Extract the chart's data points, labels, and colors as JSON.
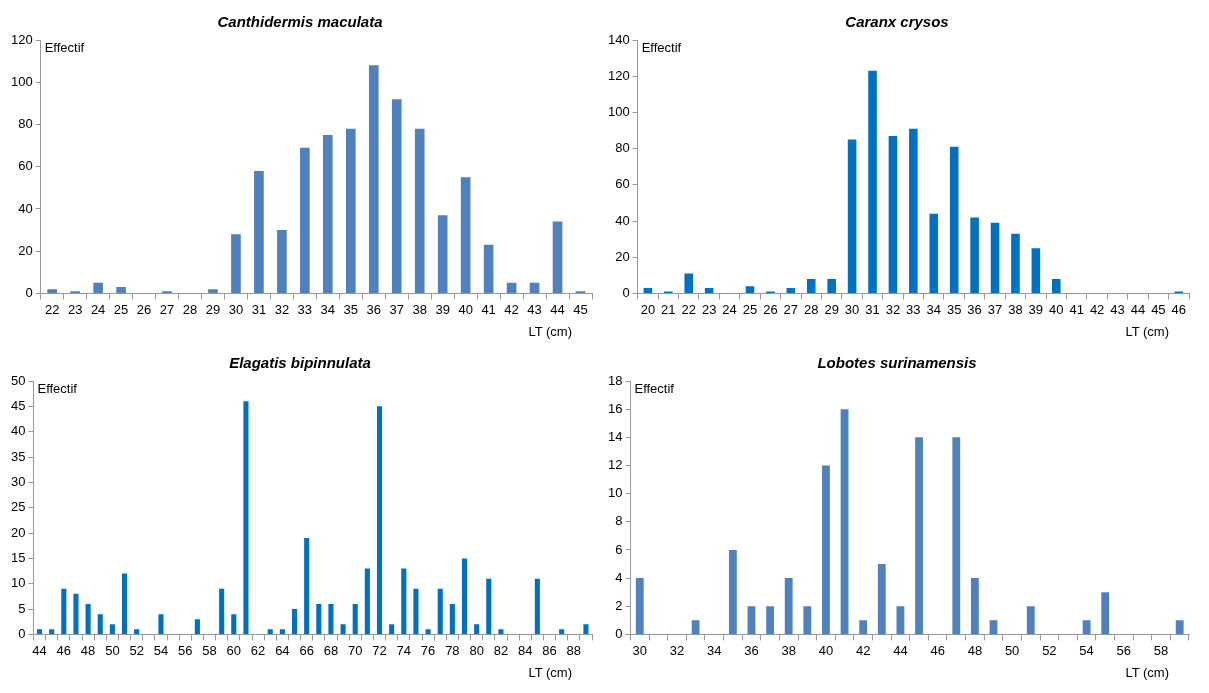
{
  "chart_data": [
    {
      "type": "bar",
      "title": "Canthidermis maculata",
      "xlabel": "LT (cm)",
      "ylabel": "Effectif",
      "grid": false,
      "color": "#4f81bd",
      "categories": [
        "22",
        "23",
        "24",
        "25",
        "26",
        "27",
        "28",
        "29",
        "30",
        "31",
        "32",
        "33",
        "34",
        "35",
        "36",
        "37",
        "38",
        "39",
        "40",
        "41",
        "42",
        "43",
        "44",
        "45"
      ],
      "values": [
        2,
        1,
        5,
        3,
        0,
        1,
        0,
        2,
        28,
        58,
        30,
        69,
        75,
        78,
        108,
        92,
        78,
        37,
        55,
        23,
        5,
        5,
        34,
        1
      ],
      "ylim": [
        0,
        120
      ],
      "yticks": [
        0,
        20,
        40,
        60,
        80,
        100,
        120
      ]
    },
    {
      "type": "bar",
      "title": "Caranx crysos",
      "xlabel": "LT (cm)",
      "ylabel": "Effectif",
      "grid": false,
      "color": "#0070c0",
      "categories": [
        "20",
        "21",
        "22",
        "23",
        "24",
        "25",
        "26",
        "27",
        "28",
        "29",
        "30",
        "31",
        "32",
        "33",
        "34",
        "35",
        "36",
        "37",
        "38",
        "39",
        "40",
        "41",
        "42",
        "43",
        "44",
        "45",
        "46"
      ],
      "values": [
        3,
        1,
        11,
        3,
        0,
        4,
        1,
        3,
        8,
        8,
        85,
        123,
        87,
        91,
        44,
        81,
        42,
        39,
        33,
        25,
        8,
        0,
        0,
        0,
        0,
        0,
        1
      ],
      "ylim": [
        0,
        140
      ],
      "yticks": [
        0,
        20,
        40,
        60,
        80,
        100,
        120,
        140
      ]
    },
    {
      "type": "bar",
      "title": "Elagatis bipinnulata",
      "xlabel": "LT (cm)",
      "ylabel": "Effectif",
      "grid": false,
      "color": "#0070c0",
      "categories": [
        "44",
        null,
        "46",
        null,
        "48",
        null,
        "50",
        null,
        "52",
        null,
        "54",
        null,
        "56",
        null,
        "58",
        null,
        "60",
        null,
        "62",
        null,
        "64",
        null,
        "66",
        null,
        "68",
        null,
        "70",
        null,
        "72",
        null,
        "74",
        null,
        "76",
        null,
        "78",
        null,
        "80",
        null,
        "82",
        null,
        "84",
        null,
        "86",
        null,
        "88",
        null
      ],
      "values": [
        1,
        1,
        9,
        8,
        6,
        4,
        2,
        12,
        1,
        0,
        4,
        0,
        0,
        3,
        0,
        9,
        4,
        46,
        0,
        1,
        1,
        5,
        19,
        6,
        6,
        2,
        6,
        13,
        45,
        2,
        13,
        9,
        1,
        9,
        6,
        15,
        2,
        11,
        1,
        0,
        0,
        11,
        0,
        1,
        0,
        2
      ],
      "ylim": [
        0,
        50
      ],
      "yticks": [
        0,
        5,
        10,
        15,
        20,
        25,
        30,
        35,
        40,
        45,
        50
      ]
    },
    {
      "type": "bar",
      "title": "Lobotes surinamensis",
      "xlabel": "LT (cm)",
      "ylabel": "Effectif",
      "grid": false,
      "color": "#4f81bd",
      "categories": [
        "30",
        null,
        "32",
        null,
        "34",
        null,
        "36",
        null,
        "38",
        null,
        "40",
        null,
        "42",
        null,
        "44",
        null,
        "46",
        null,
        "48",
        null,
        "50",
        null,
        "52",
        null,
        "54",
        null,
        "56",
        null,
        "58",
        null
      ],
      "values": [
        4,
        0,
        0,
        1,
        0,
        6,
        2,
        2,
        4,
        2,
        12,
        16,
        1,
        5,
        2,
        14,
        0,
        14,
        4,
        1,
        0,
        2,
        0,
        0,
        1,
        3,
        0,
        0,
        0,
        1
      ],
      "ylim": [
        0,
        18
      ],
      "yticks": [
        0,
        2,
        4,
        6,
        8,
        10,
        12,
        14,
        16,
        18
      ]
    }
  ]
}
